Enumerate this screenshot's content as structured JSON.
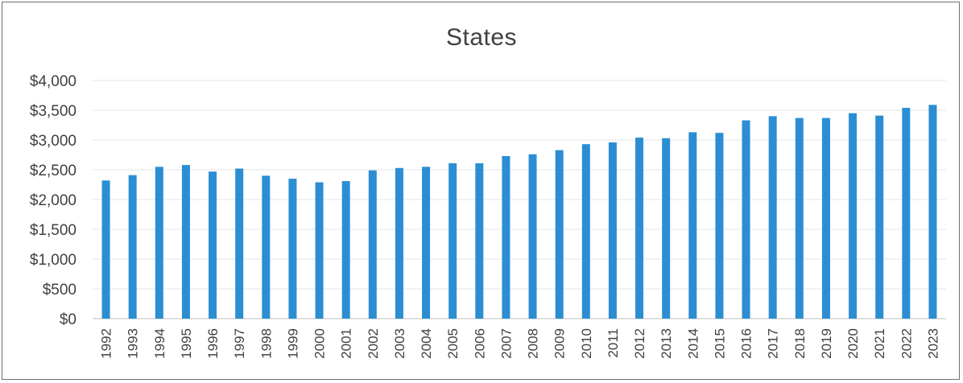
{
  "chart_data": {
    "type": "bar",
    "title": "States",
    "categories": [
      "1992",
      "1993",
      "1994",
      "1995",
      "1996",
      "1997",
      "1998",
      "1999",
      "2000",
      "2001",
      "2002",
      "2003",
      "2004",
      "2005",
      "2006",
      "2007",
      "2008",
      "2009",
      "2010",
      "2011",
      "2012",
      "2013",
      "2014",
      "2015",
      "2016",
      "2017",
      "2018",
      "2019",
      "2020",
      "2021",
      "2022",
      "2023"
    ],
    "values": [
      2320,
      2410,
      2550,
      2580,
      2470,
      2520,
      2400,
      2350,
      2290,
      2310,
      2490,
      2530,
      2550,
      2610,
      2610,
      2730,
      2760,
      2830,
      2930,
      2960,
      3040,
      3030,
      3130,
      3120,
      3330,
      3400,
      3370,
      3370,
      3450,
      3410,
      3540,
      3590
    ],
    "ylim": [
      0,
      4000
    ],
    "yticks": [
      0,
      500,
      1000,
      1500,
      2000,
      2500,
      3000,
      3500,
      4000
    ],
    "ytick_labels": [
      "$0",
      "$500",
      "$1,000",
      "$1,500",
      "$2,000",
      "$2,500",
      "$3,000",
      "$3,500",
      "$4,000"
    ],
    "xlabel": "",
    "ylabel": "",
    "grid": true,
    "bar_color": "#2b8ed3",
    "grid_color": "#e6e6e6"
  }
}
